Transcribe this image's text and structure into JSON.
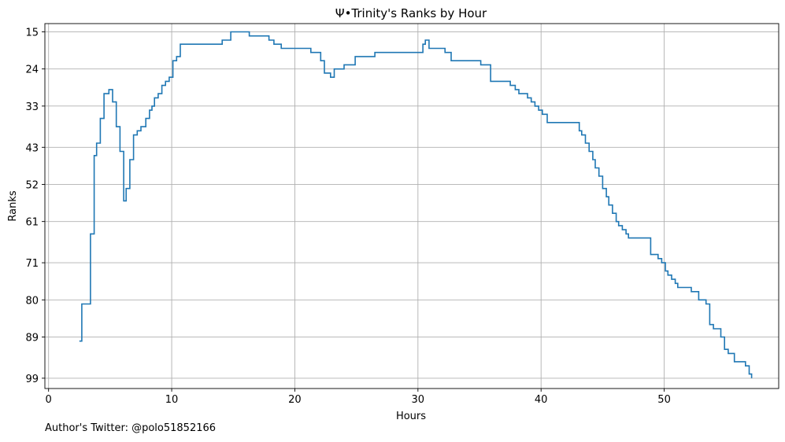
{
  "chart_data": {
    "type": "line",
    "step": true,
    "title": "Ψ•Trinity's Ranks by Hour",
    "xlabel": "Hours",
    "ylabel": "Ranks",
    "xlim": [
      -0.3,
      59.3
    ],
    "ylim": [
      101.5,
      13
    ],
    "y_inverted": true,
    "grid": true,
    "line_color": "#1f77b4",
    "x_ticks": [
      0,
      10,
      20,
      30,
      40,
      50
    ],
    "y_ticks": [
      15,
      24,
      33,
      43,
      52,
      61,
      71,
      80,
      89,
      99
    ],
    "series": [
      {
        "x": [
          2.5,
          2.7,
          3.1,
          3.4,
          3.7,
          3.9,
          4.2,
          4.5,
          4.9,
          5.2,
          5.5,
          5.8,
          6.1,
          6.3,
          6.6,
          6.9,
          7.2,
          7.5,
          7.9,
          8.2,
          8.4,
          8.6,
          8.9,
          9.2,
          9.5,
          9.8,
          10.1,
          10.4,
          10.7,
          12.2,
          14.1,
          14.8,
          16.3,
          16.7,
          17.9,
          18.3,
          18.6,
          18.9,
          21.3,
          22.1,
          22.4,
          22.9,
          23.2,
          24.0,
          24.9,
          26.5,
          30.4,
          30.6,
          30.9,
          32.2,
          32.7,
          35.1,
          35.9,
          36.3,
          37.5,
          37.9,
          38.2,
          38.9,
          39.2,
          39.5,
          39.8,
          40.1,
          40.5,
          43.1,
          43.3,
          43.6,
          43.9,
          44.2,
          44.4,
          44.7,
          45.0,
          45.3,
          45.5,
          45.8,
          46.1,
          46.3,
          46.6,
          46.9,
          47.1,
          48.9,
          49.5,
          49.8,
          50.1,
          50.3,
          50.6,
          50.9,
          51.1,
          51.4,
          52.2,
          52.8,
          53.4,
          53.7,
          54.0,
          54.6,
          54.9,
          55.2,
          55.7,
          56.6,
          56.9,
          57.1
        ],
        "y": [
          90,
          81,
          81,
          64,
          45,
          42,
          36,
          30,
          29,
          32,
          38,
          44,
          56,
          53,
          46,
          40,
          39,
          38,
          36,
          34,
          33,
          31,
          30,
          28,
          27,
          26,
          22,
          21,
          18,
          18,
          17,
          15,
          16,
          16,
          17,
          18,
          18,
          19,
          20,
          22,
          25,
          26,
          24,
          23,
          21,
          20,
          18,
          17,
          19,
          20,
          22,
          23,
          27,
          27,
          28,
          29,
          30,
          31,
          32,
          33,
          34,
          35,
          37,
          39,
          40,
          42,
          44,
          46,
          48,
          50,
          53,
          55,
          57,
          59,
          61,
          62,
          63,
          64,
          65,
          69,
          70,
          71,
          73,
          74,
          75,
          76,
          77,
          77,
          78,
          80,
          81,
          86,
          87,
          89,
          92,
          93,
          95,
          96,
          98,
          99
        ]
      }
    ]
  },
  "footer": {
    "credit": "Author's Twitter: @polo51852166"
  }
}
